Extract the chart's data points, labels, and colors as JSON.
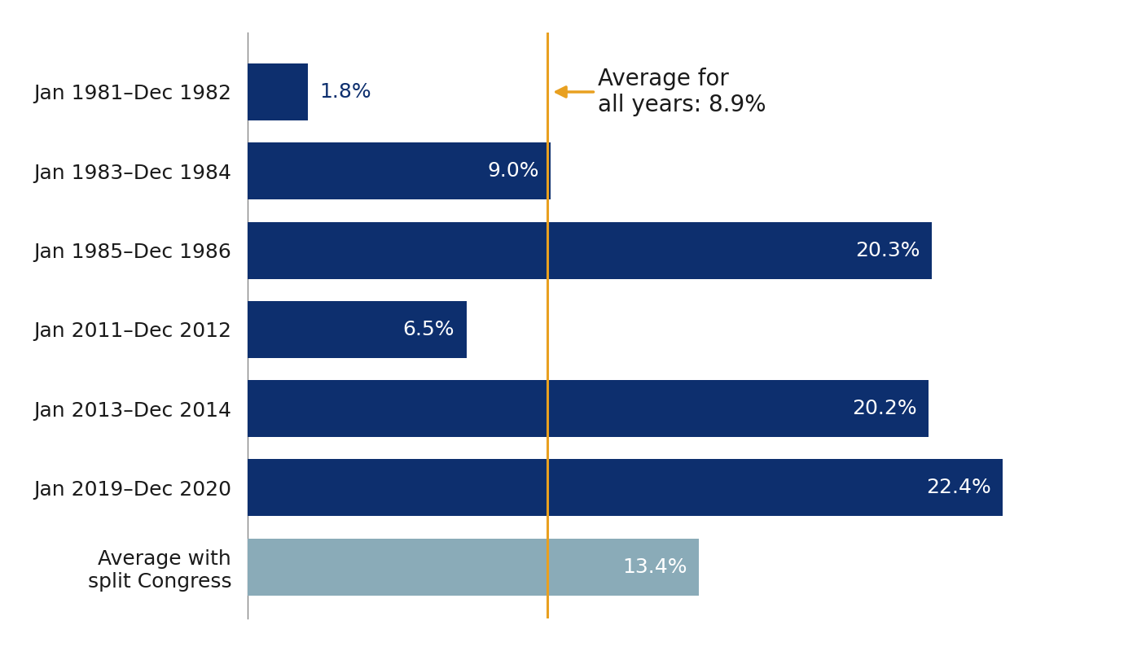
{
  "categories": [
    "Jan 1981–Dec 1982",
    "Jan 1983–Dec 1984",
    "Jan 1985–Dec 1986",
    "Jan 2011–Dec 2012",
    "Jan 2013–Dec 2014",
    "Jan 2019–Dec 2020",
    "Average with\nsplit Congress"
  ],
  "values": [
    1.8,
    9.0,
    20.3,
    6.5,
    20.2,
    22.4,
    13.4
  ],
  "bar_colors": [
    "#0d2f6e",
    "#0d2f6e",
    "#0d2f6e",
    "#0d2f6e",
    "#0d2f6e",
    "#0d2f6e",
    "#8aabb8"
  ],
  "average_line": 8.9,
  "average_label": "Average for\nall years: 8.9%",
  "average_line_color": "#e8a020",
  "xlim": [
    0,
    25
  ],
  "background_color": "#ffffff",
  "bar_height": 0.72,
  "label_fontsize": 18,
  "ytick_fontsize": 18,
  "annotation_fontsize": 20
}
